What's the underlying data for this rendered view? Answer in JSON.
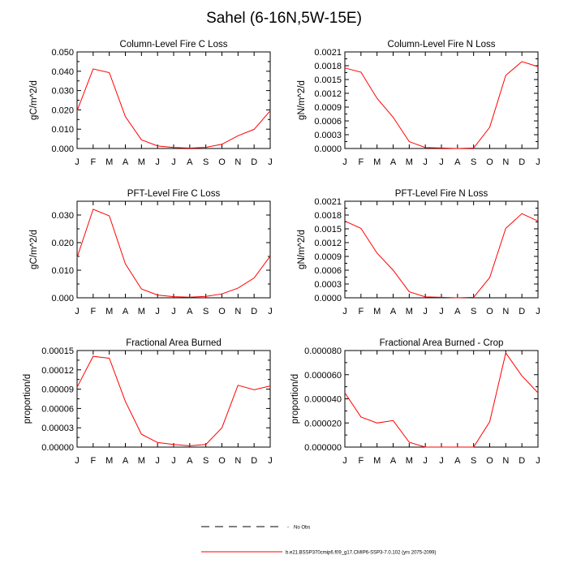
{
  "title": "Sahel (6-16N,5W-15E)",
  "chart_data": [
    {
      "type": "line",
      "title": "Column-Level Fire C Loss",
      "ylabel": "gC/m^2/d",
      "x": [
        "J",
        "F",
        "M",
        "A",
        "M",
        "J",
        "J",
        "A",
        "S",
        "O",
        "N",
        "D",
        "J"
      ],
      "ylim": [
        0,
        0.05
      ],
      "yticks": [
        "0.000",
        "0.010",
        "0.020",
        "0.030",
        "0.040",
        "0.050"
      ],
      "series": [
        {
          "values": [
            0.0195,
            0.0412,
            0.0393,
            0.0165,
            0.0045,
            0.0013,
            0.0005,
            0.0002,
            0.0006,
            0.0022,
            0.0066,
            0.0099,
            0.0195
          ]
        }
      ]
    },
    {
      "type": "line",
      "title": "Column-Level Fire N Loss",
      "ylabel": "gN/m^2/d",
      "x": [
        "J",
        "F",
        "M",
        "A",
        "M",
        "J",
        "J",
        "A",
        "S",
        "O",
        "N",
        "D",
        "J"
      ],
      "ylim": [
        0,
        0.0021
      ],
      "yticks": [
        "0.0000",
        "0.0003",
        "0.0006",
        "0.0009",
        "0.0012",
        "0.0015",
        "0.0018",
        "0.0021"
      ],
      "series": [
        {
          "values": [
            0.00175,
            0.00166,
            0.00109,
            0.00068,
            0.00015,
            2e-05,
            1e-05,
            0.0,
            1e-05,
            0.00046,
            0.00159,
            0.00189,
            0.00178
          ]
        }
      ]
    },
    {
      "type": "line",
      "title": "PFT-Level Fire C Loss",
      "ylabel": "gC/m^2/d",
      "x": [
        "J",
        "F",
        "M",
        "A",
        "M",
        "J",
        "J",
        "A",
        "S",
        "O",
        "N",
        "D",
        "J"
      ],
      "ylim": [
        0,
        0.035
      ],
      "yticks": [
        "0.000",
        "0.010",
        "0.020",
        "0.030"
      ],
      "series": [
        {
          "values": [
            0.0146,
            0.0321,
            0.0297,
            0.0123,
            0.0032,
            0.001,
            0.0004,
            0.0002,
            0.0005,
            0.0014,
            0.0035,
            0.0072,
            0.0151
          ]
        }
      ]
    },
    {
      "type": "line",
      "title": "PFT-Level Fire N Loss",
      "ylabel": "gN/m^2/d",
      "x": [
        "J",
        "F",
        "M",
        "A",
        "M",
        "J",
        "J",
        "A",
        "S",
        "O",
        "N",
        "D",
        "J"
      ],
      "ylim": [
        0,
        0.0021
      ],
      "yticks": [
        "0.0000",
        "0.0003",
        "0.0006",
        "0.0009",
        "0.0012",
        "0.0015",
        "0.0018",
        "0.0021"
      ],
      "series": [
        {
          "values": [
            0.00167,
            0.00151,
            0.00097,
            0.0006,
            0.00013,
            2e-05,
            1e-05,
            0.0,
            1e-05,
            0.00044,
            0.00151,
            0.00183,
            0.00167
          ]
        }
      ]
    },
    {
      "type": "line",
      "title": "Fractional Area Burned",
      "ylabel": "proportion/d",
      "x": [
        "J",
        "F",
        "M",
        "A",
        "M",
        "J",
        "J",
        "A",
        "S",
        "O",
        "N",
        "D",
        "J"
      ],
      "ylim": [
        0,
        0.00015
      ],
      "yticks": [
        "0.00000",
        "0.00003",
        "0.00006",
        "0.00009",
        "0.00012",
        "0.00015"
      ],
      "series": [
        {
          "values": [
            9.3e-05,
            0.000141,
            0.000138,
            7.1e-05,
            2e-05,
            7e-06,
            4e-06,
            2e-06,
            4e-06,
            3e-05,
            9.6e-05,
            8.9e-05,
            9.5e-05
          ]
        }
      ]
    },
    {
      "type": "line",
      "title": "Fractional Area Burned - Crop",
      "ylabel": "proportion/d",
      "x": [
        "J",
        "F",
        "M",
        "A",
        "M",
        "J",
        "J",
        "A",
        "S",
        "O",
        "N",
        "D",
        "J"
      ],
      "ylim": [
        0,
        8e-05
      ],
      "yticks": [
        "0.000000",
        "0.000020",
        "0.000040",
        "0.000060",
        "0.000080"
      ],
      "series": [
        {
          "values": [
            4.5e-05,
            2.5e-05,
            2e-05,
            2.2e-05,
            4e-06,
            0.0,
            0.0,
            0.0,
            0.0,
            2.1e-05,
            7.8e-05,
            5.9e-05,
            4.5e-05
          ]
        }
      ]
    }
  ],
  "legend": {
    "entries": [
      {
        "label": "No Obs",
        "style": "dashed",
        "color": "#000000"
      },
      {
        "label": "b.e21.BSSP370cmip6.f09_g17.CMIP6-SSP3-7.0.102 (yrs 2075-2099)",
        "style": "solid",
        "color": "#ff0000"
      }
    ]
  },
  "colors": {
    "line": "#ff0000",
    "axis": "#000000"
  }
}
